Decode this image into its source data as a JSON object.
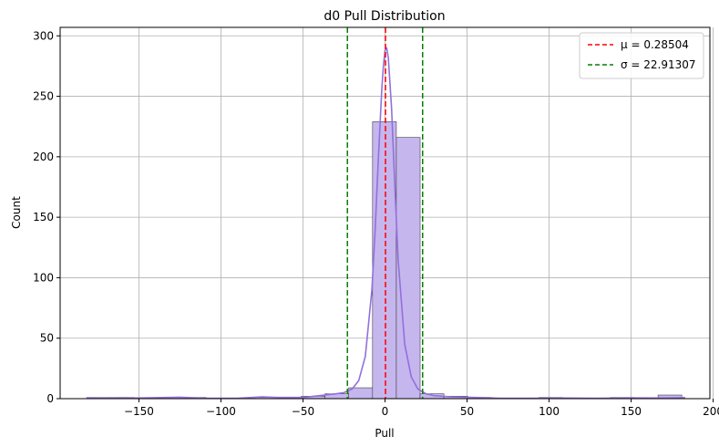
{
  "chart_data": {
    "type": "bar",
    "title": "d0 Pull Distribution",
    "xlabel": "Pull",
    "ylabel": "Count",
    "xlim": [
      -198,
      198
    ],
    "ylim": [
      0,
      307
    ],
    "xticks": [
      -150,
      -100,
      -50,
      0,
      50,
      100,
      150,
      200
    ],
    "yticks": [
      0,
      50,
      100,
      150,
      200,
      250,
      300
    ],
    "grid": true,
    "bin_width": 14.5,
    "bins": [
      {
        "x0": -181.6,
        "x1": -167.1,
        "count": 1
      },
      {
        "x0": -167.1,
        "x1": -152.6,
        "count": 1
      },
      {
        "x0": -152.6,
        "x1": -138.1,
        "count": 0
      },
      {
        "x0": -138.1,
        "x1": -123.6,
        "count": 1
      },
      {
        "x0": -123.6,
        "x1": -109.1,
        "count": 1
      },
      {
        "x0": -109.1,
        "x1": -94.6,
        "count": 0
      },
      {
        "x0": -94.6,
        "x1": -80.1,
        "count": 0
      },
      {
        "x0": -80.1,
        "x1": -65.6,
        "count": 1
      },
      {
        "x0": -65.6,
        "x1": -51.1,
        "count": 0
      },
      {
        "x0": -51.1,
        "x1": -36.6,
        "count": 2
      },
      {
        "x0": -36.6,
        "x1": -22.1,
        "count": 4
      },
      {
        "x0": -22.1,
        "x1": -7.6,
        "count": 9
      },
      {
        "x0": -7.6,
        "x1": 6.9,
        "count": 229
      },
      {
        "x0": 6.9,
        "x1": 21.4,
        "count": 216
      },
      {
        "x0": 21.4,
        "x1": 35.9,
        "count": 4
      },
      {
        "x0": 35.9,
        "x1": 50.4,
        "count": 2
      },
      {
        "x0": 50.4,
        "x1": 64.9,
        "count": 1
      },
      {
        "x0": 64.9,
        "x1": 79.4,
        "count": 0
      },
      {
        "x0": 79.4,
        "x1": 93.9,
        "count": 0
      },
      {
        "x0": 93.9,
        "x1": 108.4,
        "count": 1
      },
      {
        "x0": 108.4,
        "x1": 122.9,
        "count": 0
      },
      {
        "x0": 122.9,
        "x1": 137.4,
        "count": 0
      },
      {
        "x0": 137.4,
        "x1": 151.9,
        "count": 1
      },
      {
        "x0": 151.9,
        "x1": 166.4,
        "count": 0
      },
      {
        "x0": 166.4,
        "x1": 180.9,
        "count": 3
      }
    ],
    "kde": {
      "x": [
        -182,
        -160,
        -140,
        -125,
        -110,
        -90,
        -75,
        -65,
        -50,
        -40,
        -30,
        -25,
        -20,
        -16,
        -12,
        -8,
        -6,
        -4,
        -2,
        -1,
        0,
        1,
        2,
        4,
        6,
        8,
        12,
        16,
        20,
        25,
        30,
        40,
        50,
        60,
        70,
        90,
        110,
        130,
        150,
        170,
        183
      ],
      "y": [
        0.6,
        0.4,
        0.8,
        1.2,
        0.4,
        0.3,
        1.5,
        1.0,
        1.0,
        2.5,
        4.0,
        5.0,
        8.0,
        15,
        35,
        90,
        140,
        200,
        255,
        275,
        288,
        290,
        282,
        240,
        175,
        115,
        45,
        18,
        8,
        4,
        2.5,
        1.5,
        1.2,
        0.8,
        0.3,
        0.3,
        0.5,
        0.4,
        0.6,
        0.5,
        0.8
      ]
    },
    "vlines": [
      {
        "name": "μ = 0.28504",
        "x": 0.28504,
        "color": "#ff0000",
        "style": "dashed"
      },
      {
        "name": "σ = 22.91307",
        "x": -22.91307,
        "color": "#008000",
        "style": "dashed"
      },
      {
        "name": "",
        "x": 22.91307,
        "color": "#008000",
        "style": "dashed"
      }
    ],
    "legend_position": "top-right",
    "colors": {
      "bar_fill": "#c5b6ee",
      "bar_edge": "#404040",
      "kde_line": "#9370db",
      "grid": "#b0b0b0"
    }
  }
}
